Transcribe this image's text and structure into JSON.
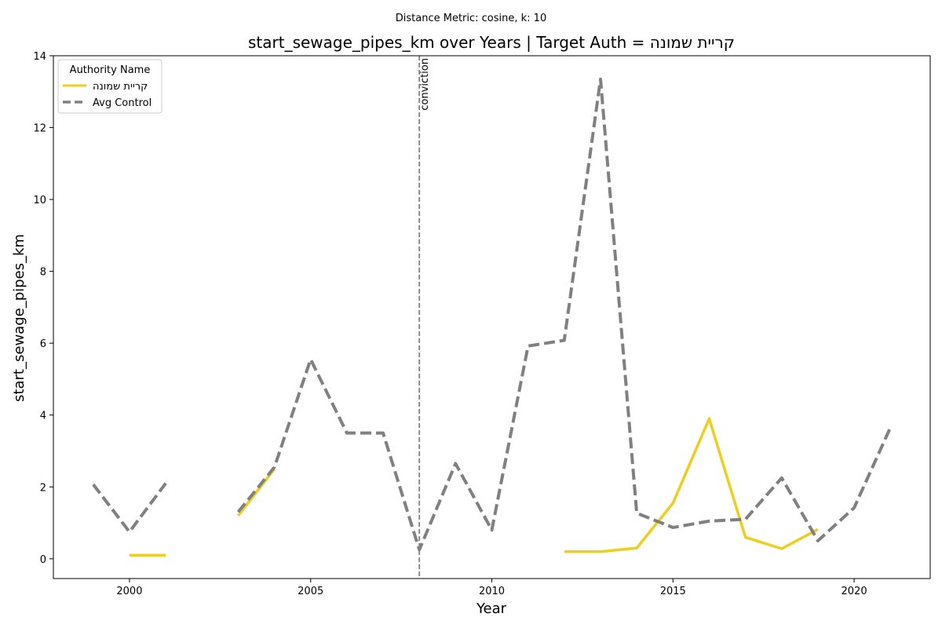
{
  "chart_data": {
    "type": "line",
    "suptitle": "Distance Metric: cosine, k: 10",
    "title": "start_sewage_pipes_km over Years | Target Auth = קריית שמונה",
    "xlabel": "Year",
    "ylabel": "start_sewage_pipes_km",
    "xlim": [
      1997.9,
      2022.1
    ],
    "ylim": [
      -0.55,
      14.0
    ],
    "xticks": [
      2000,
      2005,
      2010,
      2015,
      2020
    ],
    "yticks": [
      0,
      2,
      4,
      6,
      8,
      10,
      12,
      14
    ],
    "grid": false,
    "legend": {
      "title": "Authority Name",
      "placement": "top-left"
    },
    "vlines": [
      {
        "x": 2008,
        "label": "conviction",
        "color": "#808080",
        "style": "dashed"
      }
    ],
    "series": [
      {
        "name": "קריית שמונה",
        "color": "#f0ce1e",
        "style": "solid",
        "points": [
          [
            2000,
            0.1
          ],
          [
            2001,
            0.1
          ],
          [
            2002,
            null
          ],
          [
            2003,
            1.2
          ],
          [
            2004,
            2.5
          ],
          [
            2005,
            null
          ],
          [
            2012,
            0.2
          ],
          [
            2013,
            0.2
          ],
          [
            2014,
            0.3
          ],
          [
            2015,
            1.55
          ],
          [
            2016,
            3.9
          ],
          [
            2017,
            0.6
          ],
          [
            2018,
            0.28
          ],
          [
            2019,
            0.82
          ]
        ]
      },
      {
        "name": "Avg Control",
        "color": "#808080",
        "style": "dashed",
        "points": [
          [
            1999,
            2.07
          ],
          [
            2000,
            0.75
          ],
          [
            2001,
            2.1
          ],
          [
            2002,
            null
          ],
          [
            2003,
            1.3
          ],
          [
            2004,
            2.55
          ],
          [
            2005,
            5.55
          ],
          [
            2006,
            3.5
          ],
          [
            2007,
            3.5
          ],
          [
            2008,
            0.25
          ],
          [
            2009,
            2.65
          ],
          [
            2010,
            0.8
          ],
          [
            2011,
            5.92
          ],
          [
            2012,
            6.08
          ],
          [
            2013,
            13.35
          ],
          [
            2014,
            1.27
          ],
          [
            2015,
            0.87
          ],
          [
            2016,
            1.05
          ],
          [
            2017,
            1.1
          ],
          [
            2018,
            2.25
          ],
          [
            2019,
            0.5
          ],
          [
            2020,
            1.42
          ],
          [
            2021,
            3.65
          ]
        ]
      }
    ]
  }
}
